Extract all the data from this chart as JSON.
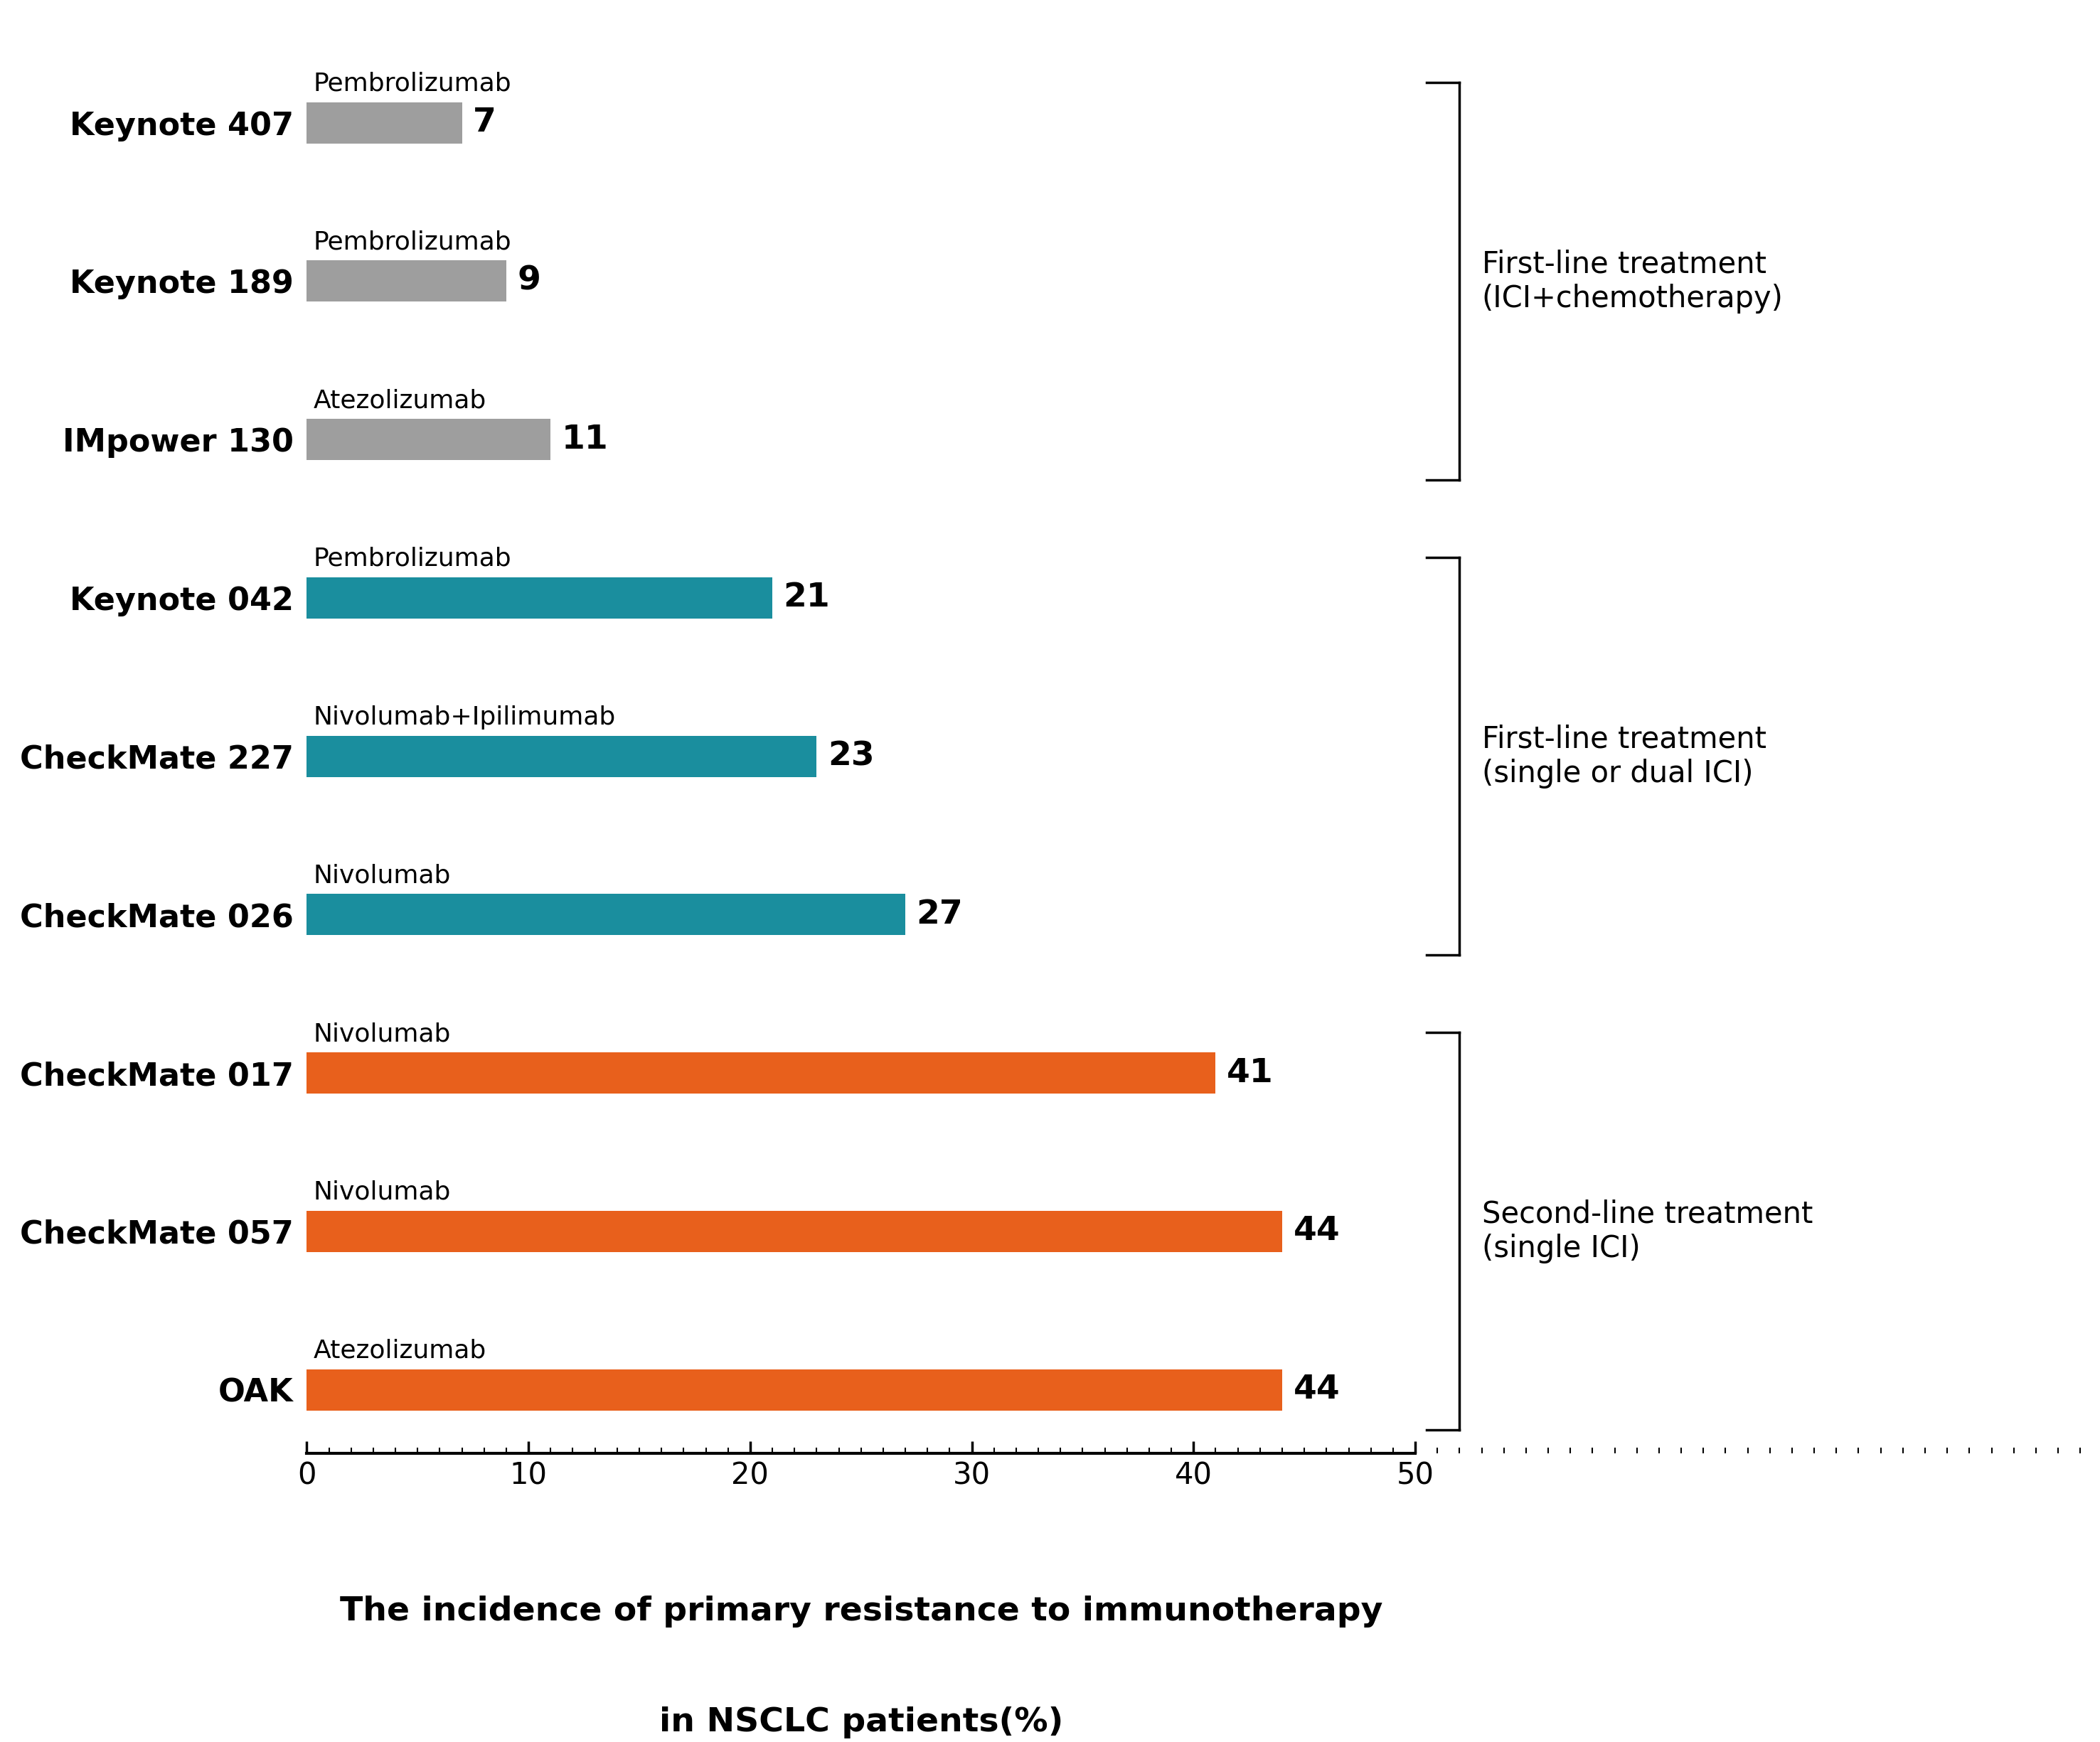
{
  "categories": [
    "OAK",
    "CheckMate 057",
    "CheckMate 017",
    "CheckMate 026",
    "CheckMate 227",
    "Keynote 042",
    "IMpower 130",
    "Keynote 189",
    "Keynote 407"
  ],
  "values": [
    44,
    44,
    41,
    27,
    23,
    21,
    11,
    9,
    7
  ],
  "drugs": [
    "Atezolizumab",
    "Nivolumab",
    "Nivolumab",
    "Nivolumab",
    "Nivolumab+Ipilimumab",
    "Pembrolizumab",
    "Atezolizumab",
    "Pembrolizumab",
    "Pembrolizumab"
  ],
  "colors": [
    "#E8601C",
    "#E8601C",
    "#E8601C",
    "#1A8E9E",
    "#1A8E9E",
    "#1A8E9E",
    "#9E9E9E",
    "#9E9E9E",
    "#9E9E9E"
  ],
  "xlabel_line1": "The incidence of primary resistance to immunotherapy",
  "xlabel_line2": "in NSCLC patients(%)",
  "xlim_plot": 50,
  "xticks": [
    0,
    10,
    20,
    30,
    40,
    50
  ],
  "value_label_fontsize": 34,
  "drug_label_fontsize": 26,
  "category_label_fontsize": 32,
  "tick_label_fontsize": 30,
  "xlabel_fontsize": 34,
  "bracket_label_fontsize": 30,
  "bar_height": 0.52,
  "bar_spacing": 2.0,
  "groups": [
    {
      "label": "First-line treatment\n(ICI+chemotherapy)",
      "bar_indices": [
        6,
        7,
        8
      ]
    },
    {
      "label": "First-line treatment\n(single or dual ICI)",
      "bar_indices": [
        3,
        4,
        5
      ]
    },
    {
      "label": "Second-line treatment\n(single ICI)",
      "bar_indices": [
        0,
        1,
        2
      ]
    }
  ]
}
